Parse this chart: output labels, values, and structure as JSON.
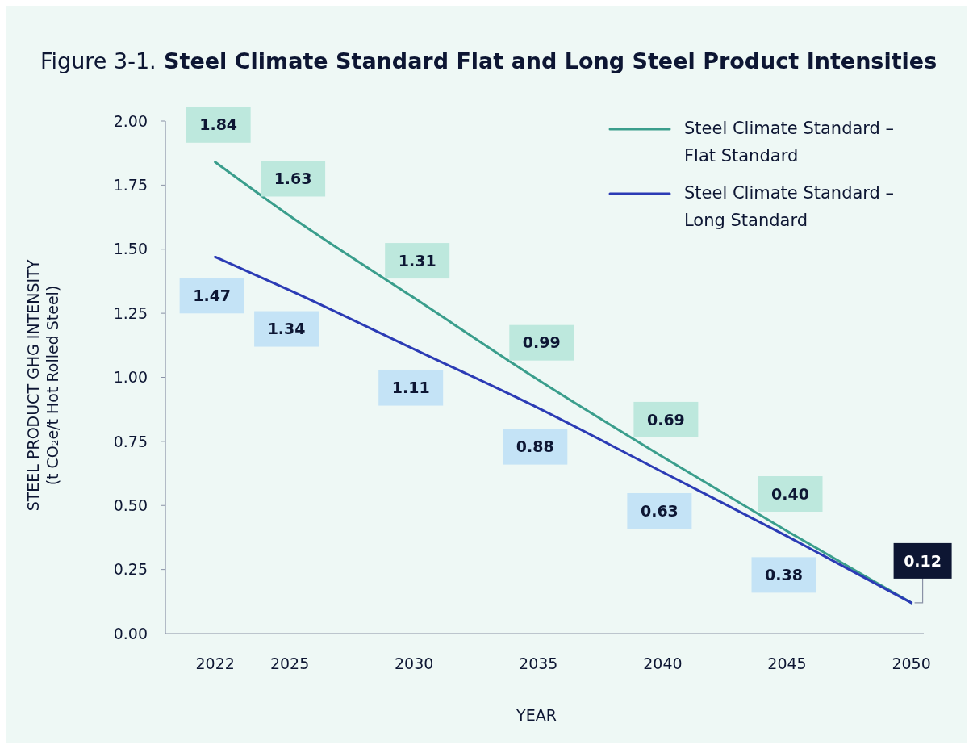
{
  "chart_data": {
    "type": "line",
    "title": "Figure 3-1. Steel Climate Standard Flat and Long Steel Product Intensities",
    "xlabel": "YEAR",
    "ylabel": "STEEL PRODUCT GHG INTENSITY\n(t CO₂e/t Hot Rolled Steel)",
    "x": [
      2022,
      2025,
      2030,
      2035,
      2040,
      2045,
      2050
    ],
    "xlim": [
      2020,
      2050.5
    ],
    "xticks": [
      2022,
      2025,
      2030,
      2035,
      2040,
      2045,
      2050
    ],
    "ylim": [
      0,
      2
    ],
    "yticks": [
      {
        "value": 0,
        "label": "0.00"
      },
      {
        "value": 0.25,
        "label": "0.25"
      },
      {
        "value": 0.5,
        "label": "0.50"
      },
      {
        "value": 0.75,
        "label": "0.75"
      },
      {
        "value": 1,
        "label": "1.00"
      },
      {
        "value": 1.25,
        "label": "1.25"
      },
      {
        "value": 1.5,
        "label": "1.50"
      },
      {
        "value": 1.75,
        "label": "1.75"
      },
      {
        "value": 2,
        "label": "2.00"
      }
    ],
    "series": [
      {
        "name": "Steel Climate Standard – Flat Standard",
        "color": "#3a9e8c",
        "values": [
          1.84,
          1.63,
          1.31,
          0.99,
          0.69,
          0.4,
          0.12
        ],
        "value_labels": [
          "1.84",
          "1.63",
          "1.31",
          "0.99",
          "0.69",
          "0.40",
          null
        ]
      },
      {
        "name": "Steel Climate Standard – Long Standard",
        "color": "#2b3bb5",
        "values": [
          1.47,
          1.34,
          1.11,
          0.88,
          0.63,
          0.38,
          0.12
        ],
        "value_labels": [
          "1.47",
          "1.34",
          "1.11",
          "0.88",
          "0.63",
          "0.38",
          null
        ]
      }
    ],
    "annotations": [
      {
        "text": "0.12",
        "x": 2050,
        "y": 0.12
      }
    ],
    "legend": "top right",
    "grid": false,
    "marker": "none",
    "line_style": "solid"
  }
}
